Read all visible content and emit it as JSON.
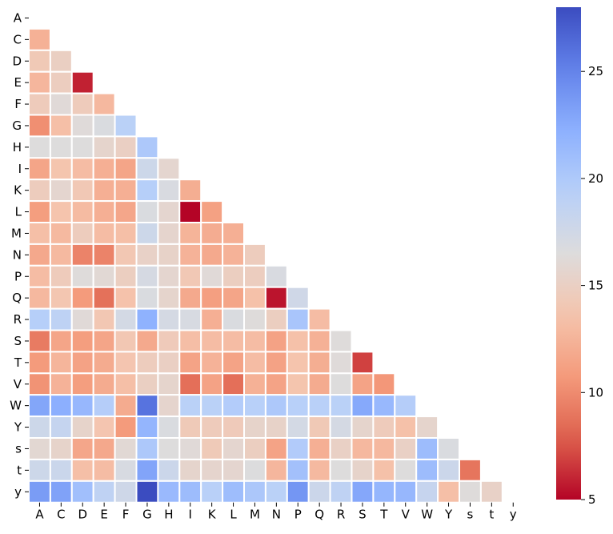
{
  "chart_data": {
    "type": "heatmap",
    "title": "",
    "xlabel": "",
    "ylabel": "",
    "mask": "upper-triangle-including-diagonal",
    "rows": [
      "A",
      "C",
      "D",
      "E",
      "F",
      "G",
      "H",
      "I",
      "K",
      "L",
      "M",
      "N",
      "P",
      "Q",
      "R",
      "S",
      "T",
      "V",
      "W",
      "Y",
      "s",
      "t",
      "y"
    ],
    "cols": [
      "A",
      "C",
      "D",
      "E",
      "F",
      "G",
      "H",
      "I",
      "K",
      "L",
      "M",
      "N",
      "P",
      "Q",
      "R",
      "S",
      "T",
      "V",
      "W",
      "Y",
      "s",
      "t",
      "y"
    ],
    "values": [
      [],
      [
        12.3
      ],
      [
        14.2,
        14.9
      ],
      [
        12.7,
        14.7,
        5.9
      ],
      [
        14.5,
        16.2,
        14.5,
        12.8
      ],
      [
        10.2,
        13.3,
        16.3,
        16.8,
        19.2
      ],
      [
        16.5,
        16.5,
        16.5,
        15.5,
        15.0,
        20.1
      ],
      [
        11.5,
        13.7,
        13.1,
        12.2,
        11.5,
        17.8,
        15.7
      ],
      [
        14.6,
        15.7,
        14.1,
        12.2,
        12.2,
        19.5,
        16.9,
        12.1
      ],
      [
        11.0,
        13.6,
        13.0,
        12.2,
        11.6,
        16.8,
        15.7,
        5.0,
        11.2
      ],
      [
        13.3,
        12.9,
        14.6,
        13.1,
        13.3,
        17.8,
        15.6,
        12.5,
        12.0,
        12.2
      ],
      [
        11.7,
        12.9,
        9.6,
        9.6,
        14.0,
        15.2,
        15.3,
        12.4,
        11.8,
        12.4,
        14.6
      ],
      [
        13.1,
        14.5,
        16.4,
        16.0,
        14.8,
        17.1,
        15.7,
        14.1,
        16.2,
        14.8,
        14.7,
        16.9
      ],
      [
        12.8,
        13.9,
        10.8,
        8.7,
        13.5,
        16.8,
        15.5,
        11.8,
        11.1,
        11.5,
        13.4,
        5.5,
        17.6
      ],
      [
        19.5,
        18.9,
        16.2,
        14.0,
        17.3,
        22.1,
        17.2,
        17.0,
        12.2,
        16.8,
        16.4,
        14.8,
        20.4,
        13.1
      ],
      [
        9.2,
        11.5,
        11.0,
        11.5,
        14.0,
        11.8,
        14.4,
        13.2,
        13.1,
        13.1,
        13.1,
        11.3,
        13.4,
        12.3,
        16.4
      ],
      [
        10.8,
        12.6,
        11.3,
        11.9,
        13.8,
        14.6,
        15.0,
        11.4,
        12.4,
        11.4,
        13.1,
        11.3,
        13.6,
        12.1,
        16.3,
        6.9
      ],
      [
        10.4,
        12.4,
        11.0,
        11.9,
        13.3,
        14.9,
        15.5,
        8.6,
        11.3,
        8.6,
        12.3,
        11.4,
        13.7,
        11.9,
        16.5,
        11.4,
        10.6
      ],
      [
        22.9,
        22.3,
        21.6,
        19.6,
        11.9,
        25.9,
        15.6,
        19.2,
        19.2,
        19.7,
        19.4,
        20.1,
        19.4,
        19.3,
        19.2,
        22.7,
        21.5,
        19.6
      ],
      [
        17.8,
        18.4,
        15.4,
        13.8,
        10.8,
        21.8,
        16.8,
        14.3,
        14.5,
        14.4,
        15.4,
        15.3,
        17.3,
        14.2,
        17.2,
        15.5,
        14.5,
        13.4,
        15.5
      ],
      [
        15.9,
        15.4,
        11.6,
        11.7,
        16.0,
        20.1,
        16.5,
        16.2,
        14.3,
        15.7,
        14.8,
        11.4,
        19.8,
        12.2,
        15.1,
        12.8,
        12.8,
        15.1,
        21.2,
        16.8
      ],
      [
        17.8,
        18.0,
        13.3,
        13.1,
        17.0,
        23.0,
        17.9,
        15.5,
        15.6,
        15.7,
        16.6,
        12.7,
        20.8,
        12.9,
        16.5,
        15.4,
        13.4,
        16.5,
        21.2,
        17.9,
        8.9
      ],
      [
        23.5,
        23.1,
        20.9,
        18.8,
        17.7,
        28.0,
        21.4,
        21.2,
        19.3,
        21.1,
        20.2,
        19.2,
        23.9,
        17.9,
        18.8,
        22.8,
        21.7,
        21.6,
        18.3,
        13.3,
        16.4,
        15.2
      ]
    ],
    "colorscale": "coolwarm_r",
    "vmin": 5,
    "vmax": 28,
    "colorbar": {
      "ticks": [
        5,
        10,
        15,
        20,
        25
      ]
    }
  }
}
